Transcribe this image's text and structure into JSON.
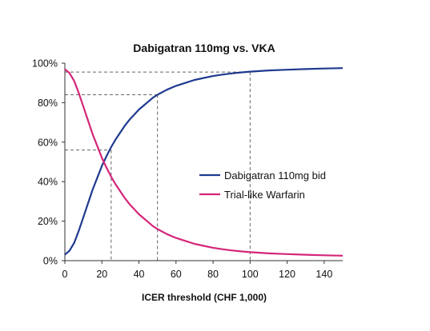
{
  "chart_data": {
    "type": "line",
    "title": "Dabigatran 110mg vs. VKA",
    "xlabel": "ICER threshold (CHF 1,000)",
    "ylabel": "",
    "xlim": [
      0,
      150
    ],
    "ylim": [
      0,
      100
    ],
    "x_ticks": [
      "0",
      "20",
      "40",
      "60",
      "80",
      "100",
      "120",
      "140"
    ],
    "y_ticks": [
      "0%",
      "20%",
      "40%",
      "60%",
      "80%",
      "100%"
    ],
    "grid": false,
    "legend_position": "right-middle",
    "series": [
      {
        "name": "Dabigatran 110mg bid",
        "color": "#1f3a8f",
        "points": [
          [
            0,
            3
          ],
          [
            2.5,
            5
          ],
          [
            5,
            9
          ],
          [
            7.5,
            15
          ],
          [
            10,
            22
          ],
          [
            12.5,
            29
          ],
          [
            15,
            36
          ],
          [
            17.5,
            42
          ],
          [
            20,
            48
          ],
          [
            22.5,
            53
          ],
          [
            25,
            57.5
          ],
          [
            27.5,
            61.5
          ],
          [
            30,
            65
          ],
          [
            32.5,
            68.5
          ],
          [
            35,
            71.5
          ],
          [
            37.5,
            74
          ],
          [
            40,
            76.5
          ],
          [
            42.5,
            78.5
          ],
          [
            45,
            80.5
          ],
          [
            47.5,
            82.5
          ],
          [
            50,
            84
          ],
          [
            55,
            86.5
          ],
          [
            60,
            88.5
          ],
          [
            65,
            90
          ],
          [
            70,
            91.5
          ],
          [
            75,
            92.5
          ],
          [
            80,
            93.5
          ],
          [
            85,
            94.2
          ],
          [
            90,
            94.8
          ],
          [
            95,
            95.3
          ],
          [
            100,
            95.7
          ],
          [
            110,
            96.3
          ],
          [
            120,
            96.7
          ],
          [
            130,
            97
          ],
          [
            140,
            97.3
          ],
          [
            150,
            97.5
          ]
        ]
      },
      {
        "name": "Trial-like Warfarin",
        "color": "#d4267a",
        "points": [
          [
            0,
            97
          ],
          [
            2.5,
            95
          ],
          [
            5,
            91
          ],
          [
            7.5,
            85
          ],
          [
            10,
            78
          ],
          [
            12.5,
            71
          ],
          [
            15,
            64
          ],
          [
            17.5,
            58
          ],
          [
            20,
            52
          ],
          [
            22.5,
            47
          ],
          [
            25,
            42.5
          ],
          [
            27.5,
            38.5
          ],
          [
            30,
            35
          ],
          [
            32.5,
            31.5
          ],
          [
            35,
            28.5
          ],
          [
            37.5,
            26
          ],
          [
            40,
            23.5
          ],
          [
            42.5,
            21.5
          ],
          [
            45,
            19.5
          ],
          [
            47.5,
            17.5
          ],
          [
            50,
            16
          ],
          [
            55,
            13.5
          ],
          [
            60,
            11.5
          ],
          [
            65,
            10
          ],
          [
            70,
            8.5
          ],
          [
            75,
            7.5
          ],
          [
            80,
            6.5
          ],
          [
            85,
            5.8
          ],
          [
            90,
            5.2
          ],
          [
            95,
            4.7
          ],
          [
            100,
            4.3
          ],
          [
            110,
            3.7
          ],
          [
            120,
            3.3
          ],
          [
            130,
            3
          ],
          [
            140,
            2.7
          ],
          [
            150,
            2.5
          ]
        ]
      }
    ],
    "reference_lines": [
      {
        "x": 25,
        "y": 56
      },
      {
        "x": 50,
        "y": 84
      },
      {
        "x": 100,
        "y": 95.5
      }
    ]
  }
}
